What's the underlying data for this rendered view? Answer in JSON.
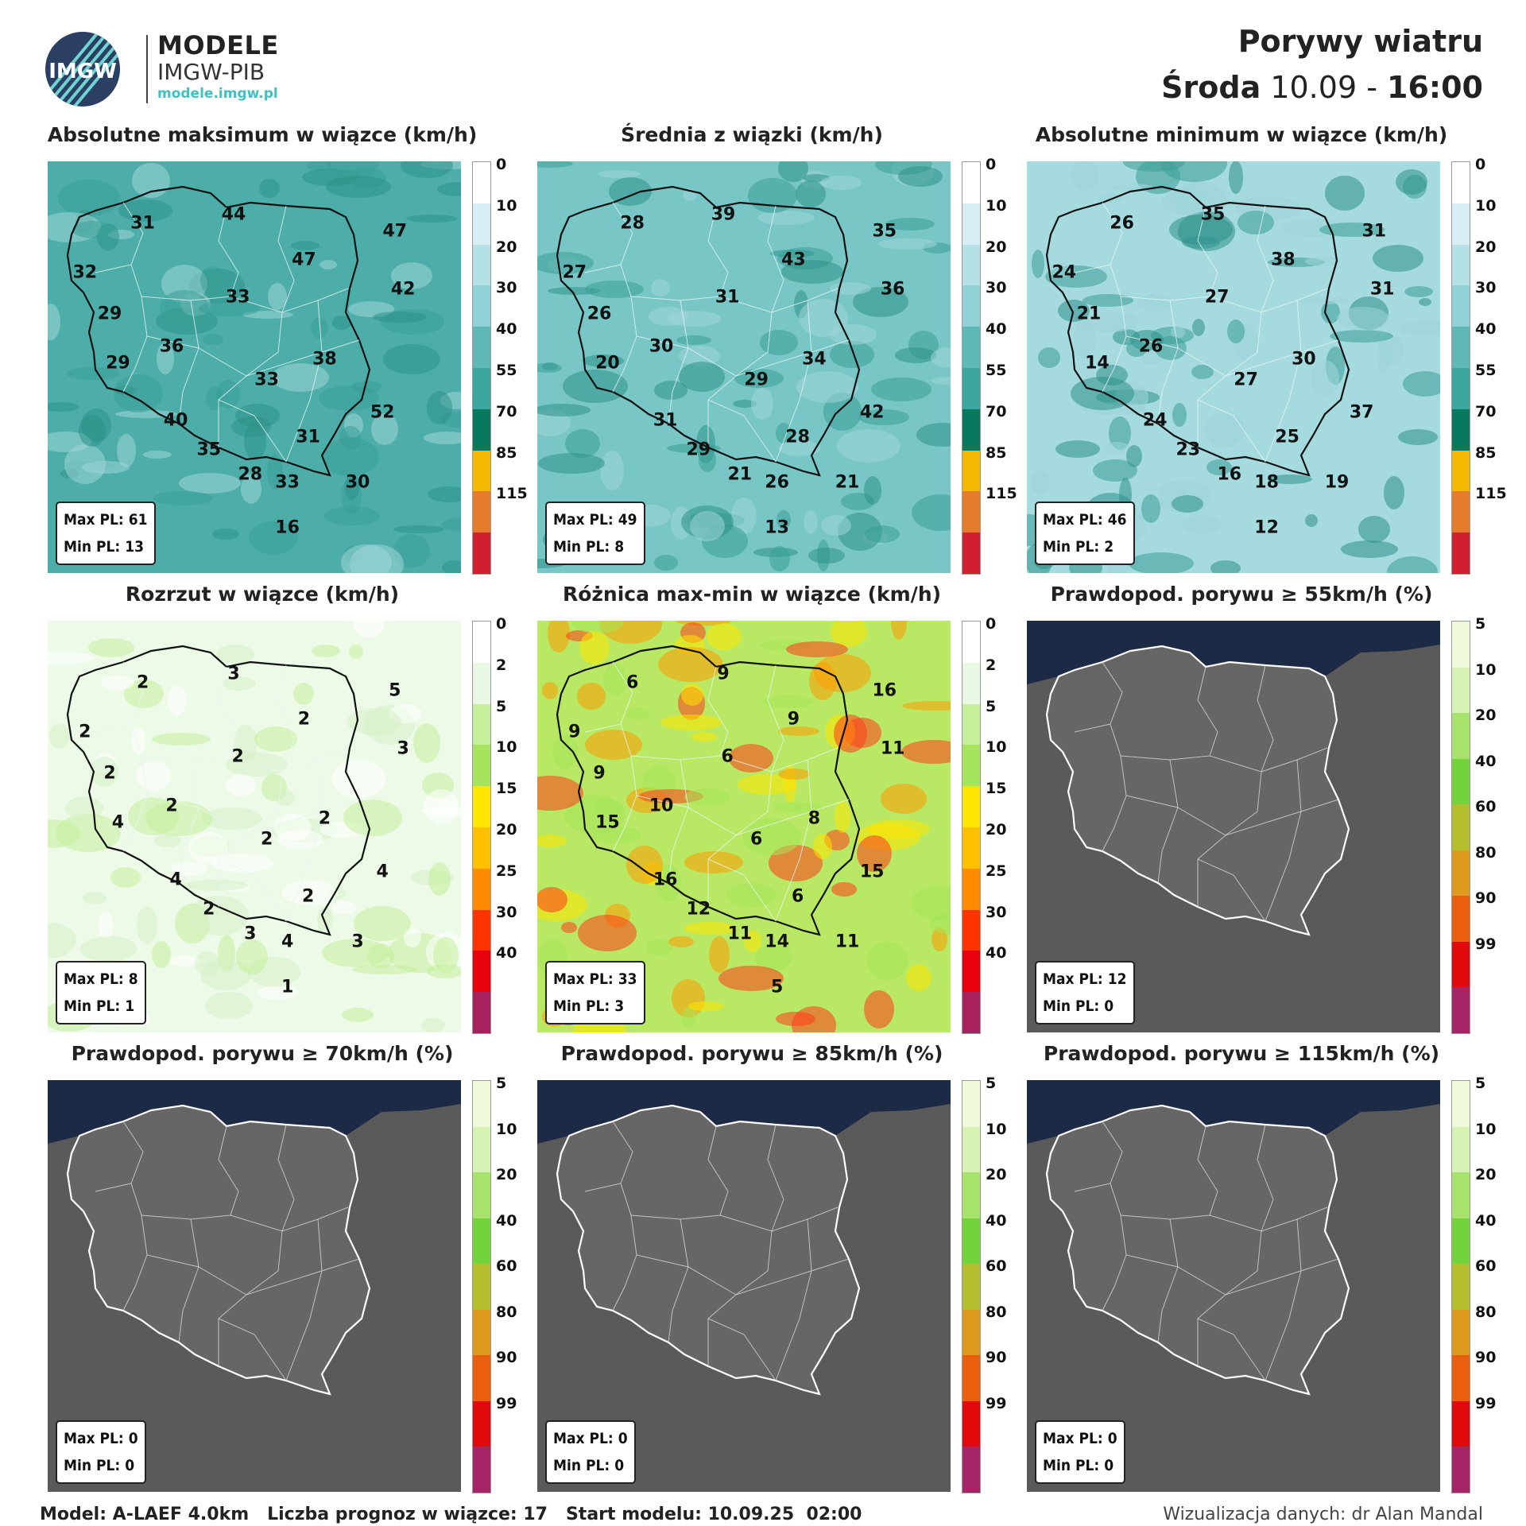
{
  "brand": {
    "title": "MODELE",
    "subtitle": "IMGW-PIB",
    "url": "modele.imgw.pl",
    "logo_text": "IMGW"
  },
  "header": {
    "title": "Porywy wiatru",
    "day": "Środa",
    "date": "10.09",
    "separator": "-",
    "time": "16:00"
  },
  "speed_scale": {
    "ticks": [
      "0",
      "10",
      "20",
      "30",
      "40",
      "55",
      "70",
      "85",
      "115"
    ],
    "colors": [
      "#ffffff",
      "#d6eef4",
      "#b3e1e6",
      "#8fd1d5",
      "#5eb9b6",
      "#3ba69f",
      "#08795f",
      "#f5b700",
      "#e57c2d",
      "#d21f2f"
    ]
  },
  "spread_scale": {
    "ticks": [
      "0",
      "2",
      "5",
      "10",
      "15",
      "20",
      "25",
      "30",
      "40"
    ],
    "colors": [
      "#ffffff",
      "#e9f8e2",
      "#c4ef9b",
      "#a5e55e",
      "#ffe600",
      "#ffc000",
      "#ff8c00",
      "#ff3300",
      "#e8000d",
      "#a8205d"
    ]
  },
  "prob_scale": {
    "ticks": [
      "5",
      "10",
      "20",
      "40",
      "60",
      "80",
      "90",
      "99"
    ],
    "colors": [
      "#eefad9",
      "#d6f2b3",
      "#a6e36b",
      "#73d33a",
      "#b5bf2e",
      "#de9a1f",
      "#e95f0e",
      "#e20a0c",
      "#a62468"
    ]
  },
  "panels": [
    {
      "title": "Absolutne maksimum w wiązce (km/h)",
      "theme": "speed",
      "shade": "#4dada8",
      "stats": {
        "max": "Max PL: 61",
        "min": "Min PL: 13"
      },
      "values": [
        "31",
        "44",
        "47",
        "32",
        "47",
        "42",
        "29",
        "33",
        "36",
        "38",
        "29",
        "33",
        "40",
        "52",
        "35",
        "31",
        "28",
        "33",
        "30",
        "16"
      ]
    },
    {
      "title": "Średnia z wiązki (km/h)",
      "theme": "speed",
      "shade": "#78c6c6",
      "stats": {
        "max": "Max PL: 49",
        "min": "Min PL: 8"
      },
      "values": [
        "28",
        "39",
        "35",
        "27",
        "43",
        "36",
        "26",
        "31",
        "30",
        "34",
        "20",
        "29",
        "31",
        "42",
        "29",
        "28",
        "21",
        "26",
        "21",
        "13"
      ]
    },
    {
      "title": "Absolutne minimum w wiązce (km/h)",
      "theme": "speed",
      "shade": "#a5dadf",
      "stats": {
        "max": "Max PL: 46",
        "min": "Min PL: 2"
      },
      "values": [
        "26",
        "35",
        "31",
        "24",
        "38",
        "31",
        "21",
        "27",
        "26",
        "30",
        "14",
        "27",
        "24",
        "37",
        "23",
        "25",
        "16",
        "18",
        "19",
        "12"
      ]
    },
    {
      "title": "Rozrzut w wiązce (km/h)",
      "theme": "spread_light",
      "shade": "#eefae8",
      "stats": {
        "max": "Max PL: 8",
        "min": "Min PL: 1"
      },
      "values": [
        "2",
        "3",
        "5",
        "2",
        "2",
        "3",
        "2",
        "2",
        "2",
        "2",
        "4",
        "2",
        "4",
        "4",
        "2",
        "2",
        "3",
        "4",
        "3",
        "1"
      ]
    },
    {
      "title": "Różnica max-min w wiązce (km/h)",
      "theme": "spread_hot",
      "shade": "#b9e864",
      "stats": {
        "max": "Max PL: 33",
        "min": "Min PL: 3"
      },
      "values": [
        "6",
        "9",
        "16",
        "9",
        "9",
        "11",
        "9",
        "6",
        "10",
        "8",
        "15",
        "6",
        "16",
        "15",
        "12",
        "6",
        "11",
        "14",
        "11",
        "5"
      ]
    },
    {
      "title": "Prawdopod. porywu ≥ 55km/h (%)",
      "theme": "prob",
      "shade": "#5e5e5e",
      "stats": {
        "max": "Max PL: 12",
        "min": "Min PL: 0"
      },
      "values": []
    },
    {
      "title": "Prawdopod. porywu ≥ 70km/h (%)",
      "theme": "prob",
      "shade": "#5e5e5e",
      "stats": {
        "max": "Max PL: 0",
        "min": "Min PL: 0"
      },
      "values": []
    },
    {
      "title": "Prawdopod. porywu ≥ 85km/h (%)",
      "theme": "prob",
      "shade": "#5e5e5e",
      "stats": {
        "max": "Max PL: 0",
        "min": "Min PL: 0"
      },
      "values": []
    },
    {
      "title": "Prawdopod. porywu ≥ 115km/h (%)",
      "theme": "prob",
      "shade": "#5e5e5e",
      "stats": {
        "max": "Max PL: 0",
        "min": "Min PL: 0"
      },
      "values": []
    }
  ],
  "footer": {
    "model": "Model: A-LAEF 4.0km   Liczba prognoz w wiązce: 17   Start modelu: 10.09.25  02:00",
    "credit": "Wizualizacja danych: dr Alan Mandal"
  }
}
